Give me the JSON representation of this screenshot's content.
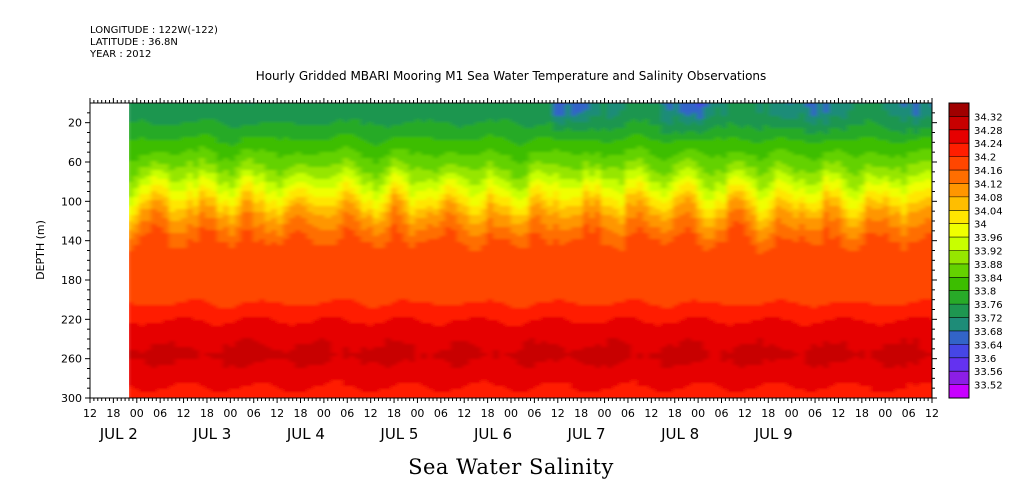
{
  "meta": {
    "longitude": "LONGITUDE : 122W(-122)",
    "latitude": "LATITUDE : 36.8N",
    "year": "YEAR : 2012"
  },
  "chart_data": {
    "type": "heatmap",
    "title": "Hourly Gridded MBARI Mooring M1 Sea Water Temperature and Salinity Observations",
    "xlabel": "Sea Water Salinity",
    "ylabel": "DEPTH (m)",
    "y_range": [
      0,
      300
    ],
    "y_reversed": true,
    "y_ticks": [
      20,
      60,
      100,
      140,
      180,
      220,
      260,
      300
    ],
    "x_range_hours": [
      12,
      228
    ],
    "data_start_hour": 22.5,
    "x_tick_labels": [
      "12",
      "18",
      "00",
      "06",
      "12",
      "18",
      "00",
      "06",
      "12",
      "18",
      "00",
      "06",
      "12",
      "18",
      "00",
      "06",
      "12",
      "18",
      "00",
      "06",
      "12",
      "18",
      "00",
      "06",
      "12",
      "18",
      "00",
      "06",
      "12",
      "18",
      "00",
      "06",
      "12",
      "18",
      "00",
      "06",
      "12"
    ],
    "date_labels": [
      {
        "label": "JUL  2",
        "hour": 24
      },
      {
        "label": "JUL  3",
        "hour": 48
      },
      {
        "label": "JUL  4",
        "hour": 72
      },
      {
        "label": "JUL  5",
        "hour": 96
      },
      {
        "label": "JUL  6",
        "hour": 120
      },
      {
        "label": "JUL  7",
        "hour": 144
      },
      {
        "label": "JUL  8",
        "hour": 168
      },
      {
        "label": "JUL  9",
        "hour": 192
      }
    ],
    "colorbar_labels": [
      "34.32",
      "34.28",
      "34.24",
      "34.2",
      "34.16",
      "34.12",
      "34.08",
      "34.04",
      "34",
      "33.96",
      "33.92",
      "33.88",
      "33.84",
      "33.8",
      "33.76",
      "33.72",
      "33.68",
      "33.64",
      "33.6",
      "33.56",
      "33.52"
    ],
    "colorbar_colors": [
      "#a00000",
      "#c80000",
      "#e60000",
      "#ff1e00",
      "#ff4600",
      "#ff6e00",
      "#ff9600",
      "#ffbe00",
      "#ffe600",
      "#f0ff00",
      "#c8ff00",
      "#96e600",
      "#64d200",
      "#3cbe00",
      "#28aa28",
      "#1e9650",
      "#1e8c78",
      "#3264c8",
      "#4646e6",
      "#6432f0",
      "#8c1ee6",
      "#c800ff"
    ],
    "salinity_profile": [
      {
        "depth": 10,
        "value": 33.73
      },
      {
        "depth": 30,
        "value": 33.77
      },
      {
        "depth": 50,
        "value": 33.82
      },
      {
        "depth": 70,
        "value": 33.88
      },
      {
        "depth": 90,
        "value": 33.97
      },
      {
        "depth": 110,
        "value": 34.06
      },
      {
        "depth": 130,
        "value": 34.12
      },
      {
        "depth": 150,
        "value": 34.17
      },
      {
        "depth": 170,
        "value": 34.16
      },
      {
        "depth": 190,
        "value": 34.15
      },
      {
        "depth": 210,
        "value": 34.2
      },
      {
        "depth": 230,
        "value": 34.24
      },
      {
        "depth": 255,
        "value": 34.27
      },
      {
        "depth": 275,
        "value": 34.24
      },
      {
        "depth": 300,
        "value": 34.2
      }
    ]
  }
}
